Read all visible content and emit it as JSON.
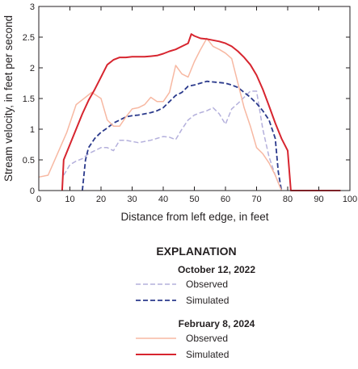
{
  "chart_data": {
    "type": "line",
    "xlabel": "Distance from left edge, in feet",
    "ylabel": "Stream velocity, in feet per second",
    "xlim": [
      0,
      100
    ],
    "ylim": [
      0,
      3
    ],
    "x_ticks": [
      0,
      10,
      20,
      30,
      40,
      50,
      60,
      70,
      80,
      90,
      100
    ],
    "y_ticks": [
      0,
      0.5,
      1,
      1.5,
      2,
      2.5,
      3
    ],
    "y_tick_labels": [
      "0",
      "0.5",
      "1",
      "1.5",
      "2",
      "2.5",
      "3"
    ],
    "grid": false,
    "legend_placement": "below the plot",
    "explanation": {
      "title": "EXPLANATION",
      "groups": [
        {
          "heading": "October 12, 2022",
          "entries": [
            {
              "label": "Observed",
              "series": 0
            },
            {
              "label": "Simulated",
              "series": 1
            }
          ]
        },
        {
          "heading": "February 8, 2024",
          "entries": [
            {
              "label": "Observed",
              "series": 2
            },
            {
              "label": "Simulated",
              "series": 3
            }
          ]
        }
      ]
    },
    "series": [
      {
        "color": "#b4b0dc",
        "dash": "dashed",
        "width": 1.5,
        "points": [
          [
            8,
            0.25
          ],
          [
            10,
            0.42
          ],
          [
            12,
            0.48
          ],
          [
            14,
            0.52
          ],
          [
            16,
            0.6
          ],
          [
            18,
            0.65
          ],
          [
            20,
            0.7
          ],
          [
            22,
            0.7
          ],
          [
            24,
            0.65
          ],
          [
            26,
            0.82
          ],
          [
            28,
            0.82
          ],
          [
            30,
            0.8
          ],
          [
            32,
            0.78
          ],
          [
            34,
            0.8
          ],
          [
            36,
            0.82
          ],
          [
            38,
            0.85
          ],
          [
            40,
            0.88
          ],
          [
            42,
            0.87
          ],
          [
            44,
            0.83
          ],
          [
            46,
            1.0
          ],
          [
            48,
            1.15
          ],
          [
            50,
            1.23
          ],
          [
            52,
            1.27
          ],
          [
            54,
            1.3
          ],
          [
            56,
            1.35
          ],
          [
            58,
            1.25
          ],
          [
            60,
            1.08
          ],
          [
            62,
            1.33
          ],
          [
            64,
            1.42
          ],
          [
            66,
            1.52
          ],
          [
            68,
            1.62
          ],
          [
            70,
            1.62
          ],
          [
            72,
            1.0
          ],
          [
            74,
            0.55
          ],
          [
            76,
            0.25
          ],
          [
            78,
            0.0
          ]
        ]
      },
      {
        "color": "#2b3a8c",
        "dash": "dashed",
        "width": 1.8,
        "points": [
          [
            14,
            0.0
          ],
          [
            15,
            0.5
          ],
          [
            16,
            0.7
          ],
          [
            18,
            0.85
          ],
          [
            20,
            0.95
          ],
          [
            22,
            1.02
          ],
          [
            24,
            1.1
          ],
          [
            26,
            1.15
          ],
          [
            28,
            1.2
          ],
          [
            30,
            1.22
          ],
          [
            32,
            1.23
          ],
          [
            34,
            1.25
          ],
          [
            36,
            1.27
          ],
          [
            38,
            1.3
          ],
          [
            40,
            1.35
          ],
          [
            42,
            1.45
          ],
          [
            44,
            1.55
          ],
          [
            46,
            1.6
          ],
          [
            48,
            1.7
          ],
          [
            50,
            1.72
          ],
          [
            52,
            1.75
          ],
          [
            54,
            1.78
          ],
          [
            56,
            1.77
          ],
          [
            58,
            1.76
          ],
          [
            60,
            1.75
          ],
          [
            62,
            1.72
          ],
          [
            64,
            1.68
          ],
          [
            66,
            1.6
          ],
          [
            68,
            1.52
          ],
          [
            70,
            1.42
          ],
          [
            72,
            1.3
          ],
          [
            74,
            1.15
          ],
          [
            76,
            0.85
          ],
          [
            77,
            0.3
          ],
          [
            78,
            0.0
          ]
        ]
      },
      {
        "color": "#f7b8a2",
        "dash": "solid",
        "width": 1.5,
        "points": [
          [
            0,
            0.22
          ],
          [
            3,
            0.25
          ],
          [
            6,
            0.6
          ],
          [
            9,
            0.95
          ],
          [
            12,
            1.4
          ],
          [
            15,
            1.52
          ],
          [
            17,
            1.6
          ],
          [
            20,
            1.5
          ],
          [
            22,
            1.15
          ],
          [
            24,
            1.05
          ],
          [
            26,
            1.05
          ],
          [
            28,
            1.2
          ],
          [
            30,
            1.33
          ],
          [
            32,
            1.35
          ],
          [
            34,
            1.4
          ],
          [
            36,
            1.52
          ],
          [
            38,
            1.45
          ],
          [
            40,
            1.45
          ],
          [
            42,
            1.6
          ],
          [
            44,
            2.04
          ],
          [
            46,
            1.9
          ],
          [
            48,
            1.85
          ],
          [
            50,
            2.1
          ],
          [
            52,
            2.3
          ],
          [
            54,
            2.48
          ],
          [
            56,
            2.35
          ],
          [
            58,
            2.3
          ],
          [
            60,
            2.24
          ],
          [
            62,
            2.15
          ],
          [
            64,
            1.75
          ],
          [
            66,
            1.35
          ],
          [
            68,
            1.05
          ],
          [
            70,
            0.7
          ],
          [
            72,
            0.6
          ],
          [
            74,
            0.45
          ],
          [
            76,
            0.25
          ],
          [
            78,
            0.0
          ]
        ]
      },
      {
        "color": "#d7252f",
        "dash": "solid",
        "width": 2.0,
        "points": [
          [
            7.5,
            0.0
          ],
          [
            8,
            0.5
          ],
          [
            10,
            0.75
          ],
          [
            12,
            1.0
          ],
          [
            14,
            1.25
          ],
          [
            16,
            1.47
          ],
          [
            18,
            1.65
          ],
          [
            20,
            1.85
          ],
          [
            22,
            2.05
          ],
          [
            24,
            2.13
          ],
          [
            26,
            2.17
          ],
          [
            28,
            2.17
          ],
          [
            30,
            2.18
          ],
          [
            32,
            2.18
          ],
          [
            34,
            2.18
          ],
          [
            36,
            2.19
          ],
          [
            38,
            2.2
          ],
          [
            40,
            2.23
          ],
          [
            42,
            2.27
          ],
          [
            44,
            2.3
          ],
          [
            46,
            2.35
          ],
          [
            48,
            2.4
          ],
          [
            49,
            2.55
          ],
          [
            50,
            2.52
          ],
          [
            52,
            2.48
          ],
          [
            54,
            2.47
          ],
          [
            56,
            2.45
          ],
          [
            58,
            2.43
          ],
          [
            60,
            2.4
          ],
          [
            62,
            2.35
          ],
          [
            64,
            2.27
          ],
          [
            66,
            2.17
          ],
          [
            68,
            2.05
          ],
          [
            70,
            1.88
          ],
          [
            72,
            1.65
          ],
          [
            74,
            1.38
          ],
          [
            76,
            1.1
          ],
          [
            78,
            0.85
          ],
          [
            80,
            0.65
          ],
          [
            81,
            0.0
          ],
          [
            82,
            0.0
          ],
          [
            90,
            0.0
          ],
          [
            97,
            0.0
          ]
        ]
      }
    ]
  }
}
